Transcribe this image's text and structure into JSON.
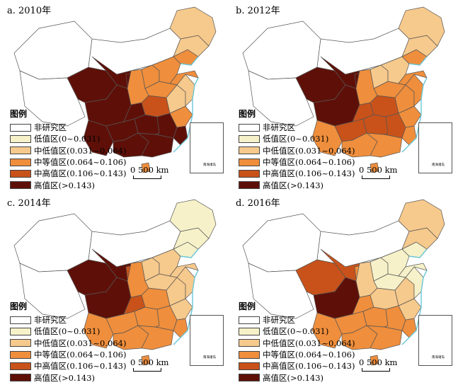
{
  "legend": {
    "title": "图例",
    "colors": [
      "#ffffff",
      "#f6f1c8",
      "#f6c98c",
      "#ef8e3c",
      "#c8521a",
      "#5e1008"
    ],
    "items": [
      "非研究区",
      "低值区(0~0.031)",
      "中低值区(0.031~0.064)",
      "中等值区(0.064~0.106)",
      "中高值区(0.106~0.143)",
      "高值区(>0.143)"
    ]
  },
  "scale_label": "0    500 km",
  "inset_label": "南海诸岛",
  "panels": [
    {
      "title": "a. 2010年",
      "regions": {
        "tibet": 0,
        "xinjiang": 0,
        "qinghai": 5,
        "sichuan": 5,
        "yunnan": 5,
        "guangxi": 5,
        "guizhou": 5,
        "chongqing": 5,
        "guangdong": 5,
        "hunan": 5,
        "jiangxi": 5,
        "fujian": 5,
        "hubei": 4,
        "anhui": 2,
        "henan": 3,
        "shaanxi": 3,
        "gansu": 5,
        "ningxia": 5,
        "innermongolia": 0,
        "shanxi": 3,
        "hebei": 3,
        "shandong": 3,
        "jiangsu": 2,
        "zhejiang": 3,
        "liaoning": 3,
        "jilin": 2,
        "heilongjiang": 2,
        "hainan": 3,
        "taiwan": 0
      }
    },
    {
      "title": "b. 2012年",
      "regions": {
        "tibet": 0,
        "xinjiang": 0,
        "qinghai": 5,
        "sichuan": 5,
        "yunnan": 3,
        "guangxi": 3,
        "guizhou": 4,
        "chongqing": 4,
        "guangdong": 3,
        "hunan": 4,
        "jiangxi": 4,
        "fujian": 3,
        "hubei": 4,
        "anhui": 3,
        "henan": 3,
        "shaanxi": 3,
        "gansu": 5,
        "ningxia": 5,
        "innermongolia": 0,
        "shanxi": 2,
        "hebei": 2,
        "shandong": 3,
        "jiangsu": 3,
        "zhejiang": 3,
        "liaoning": 3,
        "jilin": 2,
        "heilongjiang": 2,
        "hainan": 3,
        "taiwan": 0
      }
    },
    {
      "title": "c. 2014年",
      "regions": {
        "tibet": 0,
        "xinjiang": 0,
        "qinghai": 5,
        "sichuan": 5,
        "yunnan": 3,
        "guangxi": 3,
        "guizhou": 3,
        "chongqing": 4,
        "guangdong": 3,
        "hunan": 3,
        "jiangxi": 3,
        "fujian": 3,
        "hubei": 3,
        "anhui": 2,
        "henan": 2,
        "shaanxi": 3,
        "gansu": 5,
        "ningxia": 4,
        "innermongolia": 0,
        "shanxi": 2,
        "hebei": 2,
        "shandong": 2,
        "jiangsu": 2,
        "zhejiang": 2,
        "liaoning": 1,
        "jilin": 1,
        "heilongjiang": 1,
        "hainan": 3,
        "taiwan": 0
      }
    },
    {
      "title": "d. 2016年",
      "regions": {
        "tibet": 0,
        "xinjiang": 0,
        "qinghai": 4,
        "sichuan": 5,
        "yunnan": 3,
        "guangxi": 3,
        "guizhou": 3,
        "chongqing": 3,
        "guangdong": 3,
        "hunan": 3,
        "jiangxi": 3,
        "fujian": 3,
        "hubei": 2,
        "anhui": 2,
        "henan": 1,
        "shaanxi": 2,
        "gansu": 4,
        "ningxia": 3,
        "innermongolia": 0,
        "shanxi": 1,
        "hebei": 1,
        "shandong": 1,
        "jiangsu": 1,
        "zhejiang": 2,
        "liaoning": 1,
        "jilin": 2,
        "heilongjiang": 2,
        "hainan": 3,
        "taiwan": 0
      }
    }
  ]
}
